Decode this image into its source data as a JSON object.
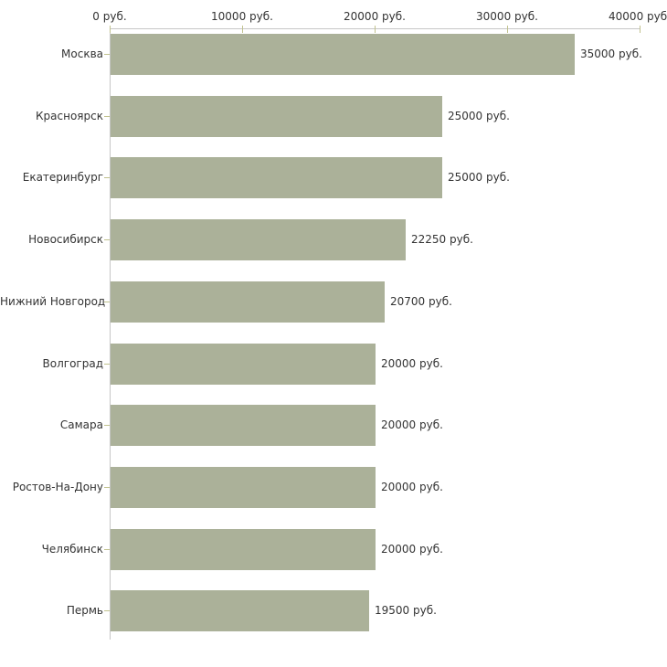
{
  "chart_data": {
    "type": "bar",
    "orientation": "horizontal",
    "title": "",
    "categories": [
      "Москва",
      "Красноярск",
      "Екатеринбург",
      "Новосибирск",
      "Нижний Новгород",
      "Волгоград",
      "Самара",
      "Ростов-На-Дону",
      "Челябинск",
      "Пермь"
    ],
    "values": [
      35000,
      25000,
      25000,
      22250,
      20700,
      20000,
      20000,
      20000,
      20000,
      19500
    ],
    "value_labels": [
      "35000 руб.",
      "25000 руб.",
      "25000 руб.",
      "22250 руб.",
      "20700 руб.",
      "20000 руб.",
      "20000 руб.",
      "20000 руб.",
      "20000 руб.",
      "19500 руб."
    ],
    "x_axis": {
      "position": "top",
      "range": [
        0,
        40000
      ],
      "ticks": [
        0,
        10000,
        20000,
        30000,
        40000
      ],
      "tick_labels": [
        "0 руб.",
        "10000 руб.",
        "20000 руб.",
        "30000 руб.",
        "40000 руб."
      ]
    },
    "y_axis": {
      "label": ""
    },
    "legend": null,
    "grid": false,
    "colors": {
      "background": "#ffffff",
      "bar": "#abb199",
      "axis_line": "#c6c6c6",
      "tick": "#c1c28e",
      "text": "#333333"
    }
  }
}
